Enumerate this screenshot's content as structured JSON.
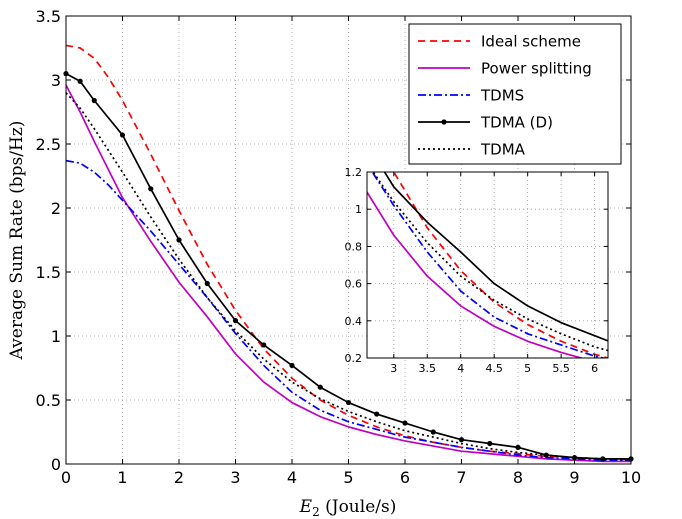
{
  "chart_data": {
    "type": "line",
    "xlabel_var": "E",
    "xlabel_sub": "2",
    "xlabel_unit": " (Joule/s)",
    "ylabel": "Average Sum Rate (bps/Hz)",
    "xlim": [
      0,
      10
    ],
    "ylim": [
      0,
      3.5
    ],
    "xticks": [
      "0",
      "1",
      "2",
      "3",
      "4",
      "5",
      "6",
      "7",
      "8",
      "9",
      "10"
    ],
    "yticks": [
      "0",
      "0.5",
      "1",
      "1.5",
      "2",
      "2.5",
      "3",
      "3.5"
    ],
    "grid": true,
    "legend_position": "top-right",
    "series": [
      {
        "name": "Ideal scheme",
        "color": "#ff0000",
        "style": "dashed",
        "marker": false,
        "x": [
          0,
          0.25,
          0.5,
          0.75,
          1,
          1.5,
          2,
          2.5,
          3,
          3.5,
          4,
          4.5,
          5,
          5.5,
          6,
          6.5,
          7,
          7.5,
          8,
          8.5,
          9,
          9.5,
          10
        ],
        "values": [
          3.27,
          3.25,
          3.17,
          3.02,
          2.84,
          2.42,
          1.98,
          1.56,
          1.2,
          0.9,
          0.67,
          0.5,
          0.38,
          0.29,
          0.22,
          0.17,
          0.13,
          0.1,
          0.08,
          0.06,
          0.05,
          0.04,
          0.035
        ]
      },
      {
        "name": "Power splitting",
        "color": "#c000c0",
        "style": "solid",
        "marker": false,
        "x": [
          0,
          0.25,
          0.5,
          0.75,
          1,
          1.5,
          2,
          2.5,
          3,
          3.5,
          4,
          4.5,
          5,
          5.5,
          6,
          6.5,
          7,
          7.5,
          8,
          8.5,
          9,
          9.5,
          10
        ],
        "values": [
          2.96,
          2.75,
          2.52,
          2.3,
          2.08,
          1.74,
          1.42,
          1.15,
          0.86,
          0.64,
          0.48,
          0.37,
          0.29,
          0.23,
          0.18,
          0.14,
          0.1,
          0.08,
          0.06,
          0.04,
          0.03,
          0.02,
          0.02
        ]
      },
      {
        "name": "TDMS",
        "color": "#0000ff",
        "style": "dashdot",
        "marker": false,
        "x": [
          0,
          0.25,
          0.5,
          0.75,
          1,
          1.5,
          2,
          2.5,
          3,
          3.5,
          4,
          4.5,
          5,
          5.5,
          6,
          6.5,
          7,
          7.5,
          8,
          8.5,
          9,
          9.5,
          10
        ],
        "values": [
          2.37,
          2.35,
          2.28,
          2.18,
          2.06,
          1.82,
          1.56,
          1.3,
          1.02,
          0.77,
          0.56,
          0.42,
          0.33,
          0.27,
          0.21,
          0.17,
          0.13,
          0.1,
          0.07,
          0.05,
          0.04,
          0.03,
          0.03
        ]
      },
      {
        "name": "TDMA (D)",
        "color": "#000000",
        "style": "solid",
        "marker": true,
        "x": [
          0,
          0.25,
          0.5,
          1,
          1.5,
          2,
          2.5,
          3,
          3.5,
          4,
          4.5,
          5,
          5.5,
          6,
          6.5,
          7,
          7.5,
          8,
          8.5,
          9,
          9.5,
          10
        ],
        "values": [
          3.05,
          2.99,
          2.84,
          2.57,
          2.15,
          1.75,
          1.41,
          1.12,
          0.93,
          0.77,
          0.6,
          0.48,
          0.39,
          0.32,
          0.25,
          0.19,
          0.16,
          0.13,
          0.07,
          0.05,
          0.04,
          0.04
        ]
      },
      {
        "name": "TDMA",
        "color": "#000000",
        "style": "dotted",
        "marker": false,
        "x": [
          0,
          0.25,
          0.5,
          0.75,
          1,
          1.5,
          2,
          2.5,
          3,
          3.5,
          4,
          4.5,
          5,
          5.5,
          6,
          6.5,
          7,
          7.5,
          8,
          8.5,
          9,
          9.5,
          10
        ],
        "values": [
          2.9,
          2.78,
          2.62,
          2.45,
          2.28,
          1.93,
          1.6,
          1.3,
          1.04,
          0.82,
          0.64,
          0.51,
          0.41,
          0.33,
          0.26,
          0.21,
          0.16,
          0.12,
          0.09,
          0.07,
          0.05,
          0.04,
          0.03
        ]
      }
    ],
    "inset": {
      "xlim": [
        2.6,
        6.2
      ],
      "ylim": [
        0.2,
        1.2
      ],
      "xticks": [
        "3",
        "3.5",
        "4",
        "4.5",
        "5",
        "5.5",
        "6"
      ],
      "yticks": [
        "0.2",
        "0.4",
        "0.6",
        "0.8",
        "1",
        "1.2"
      ],
      "grid": true
    }
  }
}
